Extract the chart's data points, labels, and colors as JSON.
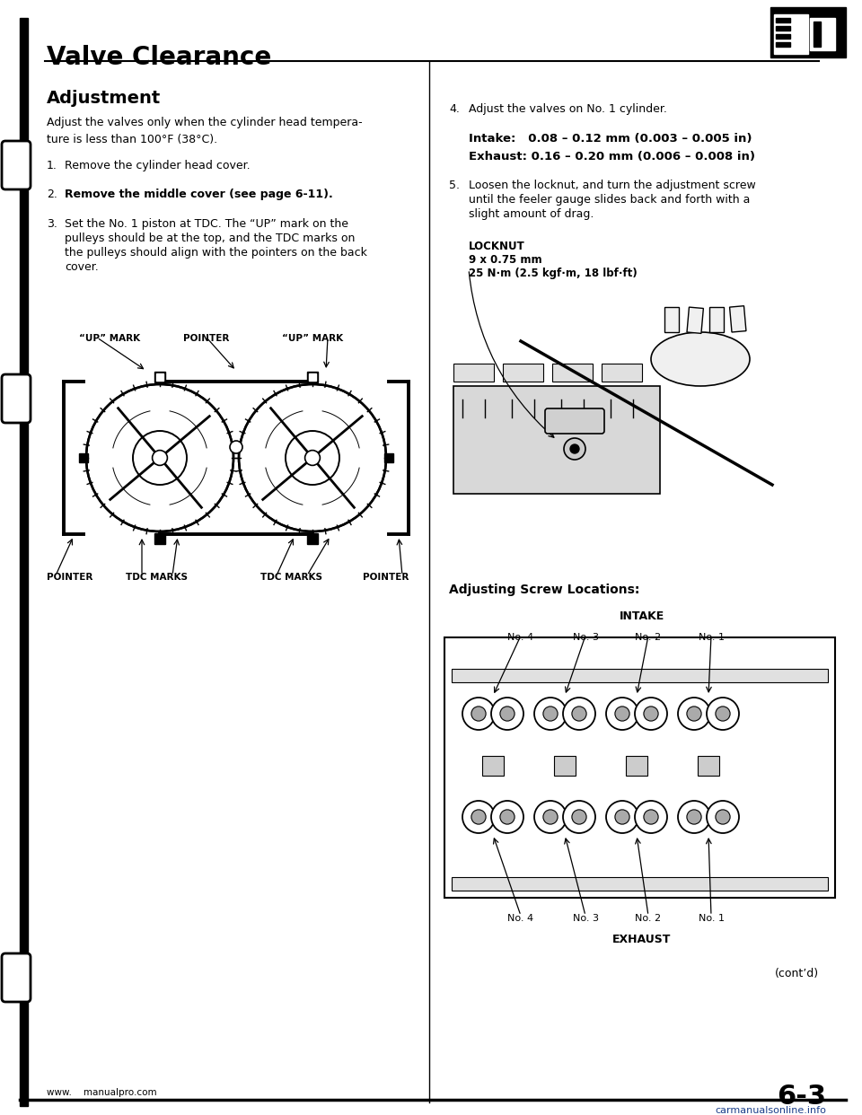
{
  "bg_color": "#ffffff",
  "page_title": "Valve Clearance",
  "section_title": "Adjustment",
  "intro_text": "Adjust the valves only when the cylinder head tempera-\nture is less than 100°F (38°C).",
  "step1": "Remove the cylinder head cover.",
  "step2": "Remove the middle cover (see page 6-11).",
  "step3_line1": "Set the No. 1 piston at TDC. The “UP” mark on the",
  "step3_line2": "pulleys should be at the top, and the TDC marks on",
  "step3_line3": "the pulleys should align with the pointers on the back",
  "step3_line4": "cover.",
  "step4_head": "Adjust the valves on No. 1 cylinder.",
  "step4_intake": "Intake:   0.08 – 0.12 mm (0.003 – 0.005 in)",
  "step4_exhaust": "Exhaust: 0.16 – 0.20 mm (0.006 – 0.008 in)",
  "step5_line1": "Loosen the locknut, and turn the adjustment screw",
  "step5_line2": "until the feeler gauge slides back and forth with a",
  "step5_line3": "slight amount of drag.",
  "locknut_line1": "LOCKNUT",
  "locknut_line2": "9 x 0.75 mm",
  "locknut_line3": "25 N·m (2.5 kgf·m, 18 lbf·ft)",
  "adj_label": "Adjusting Screw Locations:",
  "intake_title": "INTAKE",
  "exhaust_title": "EXHAUST",
  "cyl_labels": [
    "No. 4",
    "No. 3",
    "No. 2",
    "No. 1"
  ],
  "up_mark": "“UP” MARK",
  "pointer": "POINTER",
  "tdc_marks": "TDC MARKS",
  "page_num": "6-3",
  "url_left": "www.    manualpro.com",
  "url_right": "carmanualsonline.info",
  "contd": "(cont’d)"
}
